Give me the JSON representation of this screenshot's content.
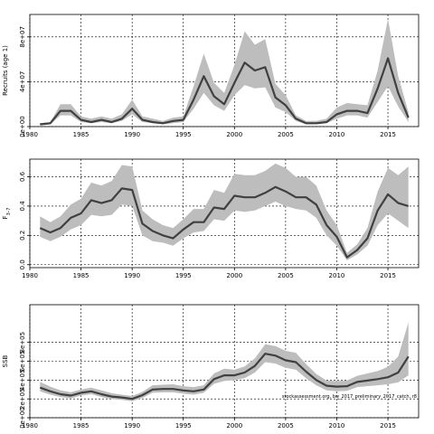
{
  "chart_data": [
    {
      "type": "line",
      "ylabel": "Recruits (age 1)",
      "xlim": [
        1980,
        2018
      ],
      "ylim": [
        0,
        100000000
      ],
      "x_ticks": [
        1980,
        1985,
        1990,
        1995,
        2000,
        2005,
        2010,
        2015
      ],
      "y_ticks": [
        0,
        40000000,
        80000000
      ],
      "y_tick_labels": [
        "0e+00",
        "4e+07",
        "8e+07"
      ],
      "grid": true,
      "series": [
        {
          "x": [
            1981,
            1982,
            1983,
            1984,
            1985,
            1986,
            1987,
            1988,
            1989,
            1990,
            1991,
            1992,
            1993,
            1994,
            1995,
            1996,
            1997,
            1998,
            1999,
            2000,
            2001,
            2002,
            2003,
            2004,
            2005,
            2006,
            2007,
            2008,
            2009,
            2010,
            2011,
            2012,
            2013,
            2014,
            2015,
            2016,
            2017
          ],
          "values": [
            2000000,
            3000000,
            14000000,
            14000000,
            6000000,
            4000000,
            6000000,
            4000000,
            7000000,
            16000000,
            6000000,
            4000000,
            3000000,
            5000000,
            6000000,
            24000000,
            45000000,
            27000000,
            20000000,
            39000000,
            57000000,
            50000000,
            53000000,
            26000000,
            19000000,
            7000000,
            3000000,
            3000000,
            4000000,
            11000000,
            14000000,
            14000000,
            12000000,
            34000000,
            61000000,
            30000000,
            8000000
          ],
          "lower": [
            1000000,
            2000000,
            10000000,
            10000000,
            4000000,
            3000000,
            4000000,
            3000000,
            5000000,
            11000000,
            4000000,
            3000000,
            2000000,
            3000000,
            4000000,
            16000000,
            30000000,
            19000000,
            14000000,
            28000000,
            37000000,
            34000000,
            35000000,
            17000000,
            13000000,
            5000000,
            2000000,
            2000000,
            3000000,
            7000000,
            10000000,
            10000000,
            8000000,
            22000000,
            36000000,
            18000000,
            4000000
          ],
          "upper": [
            3000000,
            4000000,
            20000000,
            20000000,
            9000000,
            7000000,
            9000000,
            7000000,
            11000000,
            24000000,
            9000000,
            7000000,
            5000000,
            8000000,
            9000000,
            36000000,
            65000000,
            39000000,
            30000000,
            55000000,
            85000000,
            73000000,
            78000000,
            38000000,
            28000000,
            10000000,
            5000000,
            5000000,
            7000000,
            17000000,
            21000000,
            20000000,
            19000000,
            50000000,
            96000000,
            45000000,
            13000000
          ]
        }
      ]
    },
    {
      "type": "line",
      "ylabel": "F3–7",
      "xlim": [
        1980,
        2018
      ],
      "ylim": [
        -0.02,
        0.72
      ],
      "x_ticks": [
        1980,
        1985,
        1990,
        1995,
        2000,
        2005,
        2010,
        2015
      ],
      "y_ticks": [
        0.0,
        0.2,
        0.4,
        0.6
      ],
      "y_tick_labels": [
        "0.0",
        "0.2",
        "0.4",
        "0.6"
      ],
      "grid": true,
      "series": [
        {
          "x": [
            1981,
            1982,
            1983,
            1984,
            1985,
            1986,
            1987,
            1988,
            1989,
            1990,
            1991,
            1992,
            1993,
            1994,
            1995,
            1996,
            1997,
            1998,
            1999,
            2000,
            2001,
            2002,
            2003,
            2004,
            2005,
            2006,
            2007,
            2008,
            2009,
            2010,
            2011,
            2012,
            2013,
            2014,
            2015,
            2016,
            2017
          ],
          "values": [
            0.25,
            0.22,
            0.25,
            0.32,
            0.35,
            0.44,
            0.42,
            0.44,
            0.52,
            0.51,
            0.28,
            0.23,
            0.2,
            0.18,
            0.24,
            0.29,
            0.29,
            0.39,
            0.38,
            0.47,
            0.46,
            0.46,
            0.49,
            0.53,
            0.5,
            0.46,
            0.46,
            0.41,
            0.27,
            0.19,
            0.05,
            0.1,
            0.18,
            0.37,
            0.48,
            0.42,
            0.4
          ],
          "lower": [
            0.19,
            0.16,
            0.19,
            0.24,
            0.27,
            0.34,
            0.33,
            0.34,
            0.41,
            0.4,
            0.2,
            0.16,
            0.15,
            0.13,
            0.18,
            0.22,
            0.23,
            0.31,
            0.3,
            0.37,
            0.36,
            0.37,
            0.4,
            0.43,
            0.4,
            0.38,
            0.37,
            0.32,
            0.2,
            0.13,
            0.03,
            0.07,
            0.13,
            0.27,
            0.35,
            0.3,
            0.25
          ],
          "upper": [
            0.33,
            0.29,
            0.33,
            0.41,
            0.45,
            0.56,
            0.54,
            0.57,
            0.68,
            0.67,
            0.37,
            0.31,
            0.27,
            0.25,
            0.31,
            0.38,
            0.38,
            0.51,
            0.49,
            0.62,
            0.61,
            0.61,
            0.64,
            0.69,
            0.66,
            0.6,
            0.6,
            0.54,
            0.37,
            0.27,
            0.08,
            0.14,
            0.25,
            0.5,
            0.66,
            0.61,
            0.67
          ]
        }
      ]
    },
    {
      "type": "line",
      "ylabel": "SSB",
      "xlim": [
        1980,
        2018
      ],
      "ylim": [
        0,
        1200000
      ],
      "x_ticks": [
        1980,
        1985,
        1990,
        1995,
        2000,
        2005,
        2010,
        2015
      ],
      "y_ticks": [
        0,
        200000,
        400000,
        600000,
        800000
      ],
      "y_tick_labels": [
        "0e+00",
        "2e+05",
        "4e+05",
        "6e+05",
        "8e+05"
      ],
      "grid": true,
      "annotation": "stockassessment.org, bw_2017_preliminary_2017_catch, r8",
      "series": [
        {
          "x": [
            1981,
            1982,
            1983,
            1984,
            1985,
            1986,
            1987,
            1988,
            1989,
            1990,
            1991,
            1992,
            1993,
            1994,
            1995,
            1996,
            1997,
            1998,
            1999,
            2000,
            2001,
            2002,
            2003,
            2004,
            2005,
            2006,
            2007,
            2008,
            2009,
            2010,
            2011,
            2012,
            2013,
            2014,
            2015,
            2016,
            2017
          ],
          "values": [
            320000,
            280000,
            250000,
            235000,
            265000,
            280000,
            250000,
            225000,
            215000,
            200000,
            240000,
            300000,
            305000,
            305000,
            290000,
            280000,
            300000,
            410000,
            450000,
            450000,
            480000,
            550000,
            680000,
            660000,
            610000,
            590000,
            490000,
            400000,
            340000,
            330000,
            335000,
            380000,
            395000,
            410000,
            430000,
            480000,
            650000
          ],
          "lower": [
            280000,
            245000,
            220000,
            205000,
            235000,
            250000,
            220000,
            198000,
            190000,
            175000,
            210000,
            265000,
            270000,
            270000,
            255000,
            245000,
            265000,
            360000,
            390000,
            400000,
            420000,
            480000,
            590000,
            575000,
            530000,
            510000,
            420000,
            345000,
            290000,
            280000,
            285000,
            325000,
            335000,
            345000,
            355000,
            375000,
            450000
          ],
          "upper": [
            380000,
            330000,
            290000,
            270000,
            300000,
            320000,
            290000,
            260000,
            245000,
            230000,
            275000,
            345000,
            350000,
            355000,
            335000,
            325000,
            345000,
            470000,
            520000,
            510000,
            545000,
            630000,
            780000,
            760000,
            710000,
            690000,
            570000,
            465000,
            395000,
            390000,
            395000,
            445000,
            470000,
            495000,
            540000,
            650000,
            1010000
          ]
        }
      ]
    }
  ],
  "panels": [
    {
      "ylabel": "Recruits (age 1)"
    },
    {
      "ylabel": "F",
      "ylabel_subscript": "3–7"
    },
    {
      "ylabel": "SSB",
      "annotation": "stockassessment.org, bw_2017_preliminary_2017_catch, r8"
    }
  ],
  "style": {
    "band_color": "#bdbdbd",
    "line_color": "#404040",
    "grid_color": "#000000"
  }
}
